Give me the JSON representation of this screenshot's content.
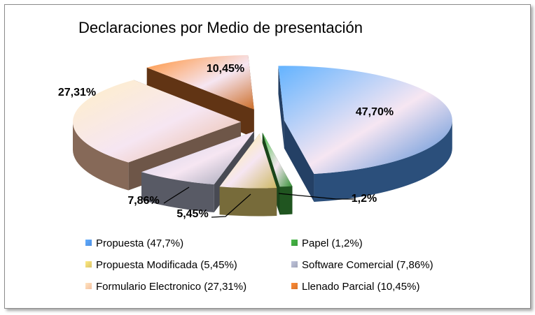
{
  "chart_data": {
    "type": "pie",
    "title": "Declaraciones por Medio de presentación",
    "slices": [
      {
        "name": "Propuesta",
        "value": 47.7,
        "label": "47,70%",
        "legend": "Propuesta (47,7%)",
        "color": "#4f8fe0"
      },
      {
        "name": "Papel",
        "value": 1.2,
        "label": "1,2%",
        "legend": "Papel (1,2%)",
        "color": "#3a9a3a"
      },
      {
        "name": "Propuesta Modificada",
        "value": 5.45,
        "label": "5,45%",
        "legend": "Propuesta Modificada (5,45%)",
        "color": "#d9c36a"
      },
      {
        "name": "Software Comercial",
        "value": 7.86,
        "label": "7,86%",
        "legend": "Software Comercial (7,86%)",
        "color": "#a0a4b8"
      },
      {
        "name": "Formulario Electronico",
        "value": 27.31,
        "label": "27,31%",
        "legend": "Formulario Electronico (27,31%)",
        "color": "#f4bfa0"
      },
      {
        "name": "Llenado Parcial",
        "value": 10.45,
        "label": "10,45%",
        "legend": "Llenado Parcial (10,45%)",
        "color": "#d7742c"
      }
    ],
    "legend_position": "bottom",
    "style": "exploded-3d"
  }
}
